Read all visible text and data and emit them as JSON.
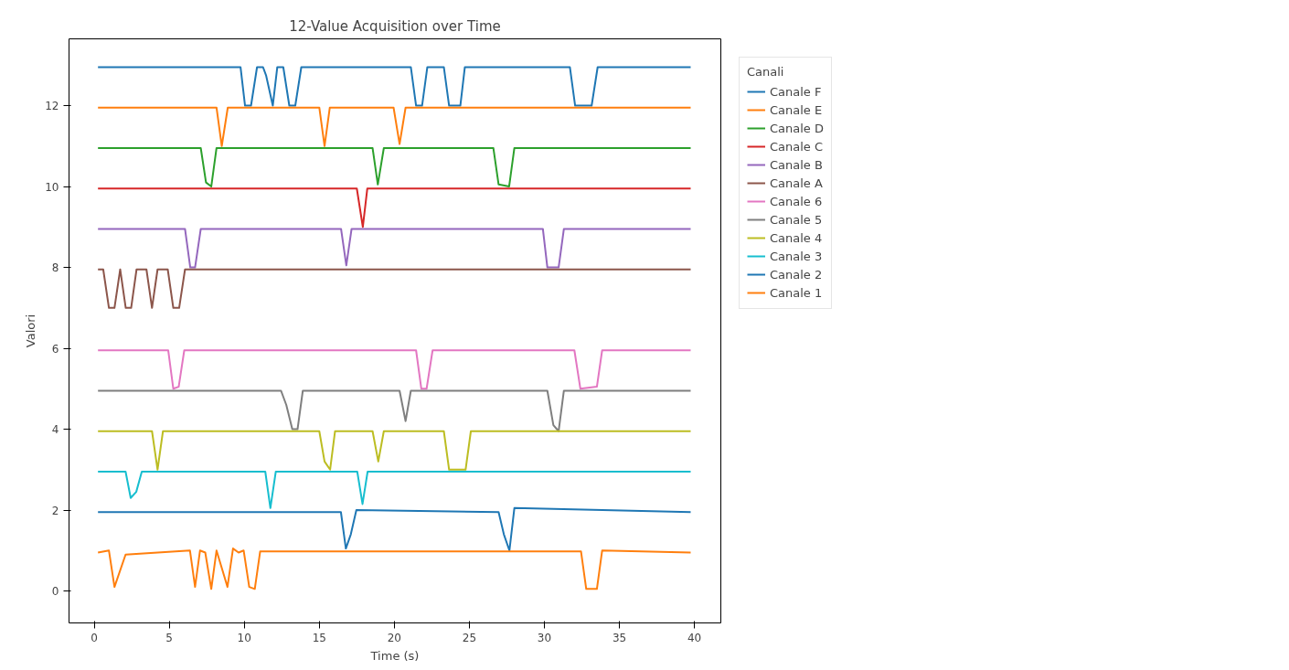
{
  "chart_data": {
    "type": "line",
    "title": "12-Value Acquisition over Time",
    "xlabel": "Time (s)",
    "ylabel": "Valori",
    "legend_title": "Canali",
    "xlim": [
      -1.68,
      41.76
    ],
    "ylim": [
      -0.79,
      13.65
    ],
    "xticks": [
      0,
      5,
      10,
      15,
      20,
      25,
      30,
      35,
      40
    ],
    "yticks": [
      0,
      2,
      4,
      6,
      8,
      10,
      12
    ],
    "grid": false,
    "legend": "top right",
    "marker": "none",
    "line_style": "solid",
    "series": [
      {
        "name": "Canale F",
        "color": "#1f77b4",
        "x": [
          0.25,
          9.75,
          10.05,
          10.45,
          10.85,
          11.25,
          11.45,
          11.9,
          12.2,
          12.6,
          13.0,
          13.4,
          13.8,
          21.1,
          21.45,
          21.85,
          22.2,
          23.3,
          23.65,
          24.4,
          24.7,
          31.7,
          32.05,
          33.15,
          33.55,
          39.75
        ],
        "values": [
          12.95,
          12.95,
          12.0,
          12.0,
          12.95,
          12.95,
          12.75,
          12.0,
          12.95,
          12.95,
          12.0,
          12.0,
          12.95,
          12.95,
          12.0,
          12.0,
          12.95,
          12.95,
          12.0,
          12.0,
          12.95,
          12.95,
          12.0,
          12.0,
          12.95,
          12.95
        ]
      },
      {
        "name": "Canale E",
        "color": "#ff7f0e",
        "x": [
          0.25,
          8.15,
          8.5,
          8.9,
          15.0,
          15.35,
          15.7,
          19.95,
          20.35,
          20.75,
          39.75
        ],
        "values": [
          11.95,
          11.95,
          11.0,
          11.95,
          11.95,
          11.0,
          11.95,
          11.95,
          11.05,
          11.95,
          11.95
        ]
      },
      {
        "name": "Canale D",
        "color": "#2ca02c",
        "x": [
          0.25,
          7.1,
          7.45,
          7.8,
          8.15,
          18.55,
          18.9,
          19.3,
          26.6,
          26.95,
          27.65,
          28.0,
          39.75
        ],
        "values": [
          10.95,
          10.95,
          10.1,
          10.0,
          10.95,
          10.95,
          10.05,
          10.95,
          10.95,
          10.05,
          10.0,
          10.95,
          10.95
        ]
      },
      {
        "name": "Canale C",
        "color": "#d62728",
        "x": [
          0.25,
          17.5,
          17.9,
          18.2,
          39.75
        ],
        "values": [
          9.95,
          9.95,
          9.0,
          9.95,
          9.95
        ]
      },
      {
        "name": "Canale B",
        "color": "#9467bd",
        "x": [
          0.25,
          6.05,
          6.4,
          6.72,
          7.1,
          16.45,
          16.8,
          17.15,
          29.9,
          30.2,
          30.95,
          31.3,
          39.75
        ],
        "values": [
          8.95,
          8.95,
          8.0,
          8.0,
          8.95,
          8.95,
          8.05,
          8.95,
          8.95,
          8.0,
          8.0,
          8.95,
          8.95
        ]
      },
      {
        "name": "Canale A",
        "color": "#8c564b",
        "x": [
          0.25,
          0.6,
          0.98,
          1.35,
          1.73,
          2.1,
          2.46,
          2.82,
          3.48,
          3.85,
          4.22,
          4.9,
          5.27,
          5.66,
          6.05,
          39.75
        ],
        "values": [
          7.95,
          7.95,
          7.0,
          7.0,
          7.95,
          7.0,
          7.0,
          7.95,
          7.95,
          7.0,
          7.95,
          7.95,
          7.0,
          7.0,
          7.95,
          7.95
        ]
      },
      {
        "name": "Canale 6",
        "color": "#e377c2",
        "x": [
          0.25,
          4.93,
          5.27,
          5.63,
          6.0,
          21.45,
          21.8,
          22.15,
          22.55,
          32.0,
          32.4,
          33.5,
          33.85,
          39.75
        ],
        "values": [
          5.95,
          5.95,
          5.0,
          5.05,
          5.95,
          5.95,
          5.0,
          5.0,
          5.95,
          5.95,
          5.0,
          5.05,
          5.95,
          5.95
        ]
      },
      {
        "name": "Canale 5",
        "color": "#7f7f7f",
        "x": [
          0.25,
          12.45,
          12.8,
          13.2,
          13.55,
          13.9,
          20.35,
          20.75,
          21.1,
          30.2,
          30.6,
          30.95,
          31.3,
          39.75
        ],
        "values": [
          4.95,
          4.95,
          4.6,
          4.0,
          4.0,
          4.95,
          4.95,
          4.2,
          4.95,
          4.95,
          4.1,
          3.95,
          4.95,
          4.95
        ]
      },
      {
        "name": "Canale 4",
        "color": "#bcbd22",
        "x": [
          0.25,
          3.85,
          4.22,
          4.58,
          15.0,
          15.35,
          15.72,
          16.05,
          18.55,
          18.93,
          19.3,
          23.3,
          23.65,
          24.75,
          25.1,
          39.75
        ],
        "values": [
          3.95,
          3.95,
          3.0,
          3.95,
          3.95,
          3.2,
          3.0,
          3.95,
          3.95,
          3.2,
          3.95,
          3.95,
          3.0,
          3.0,
          3.95,
          3.95
        ]
      },
      {
        "name": "Canale 3",
        "color": "#17becf",
        "x": [
          0.25,
          2.09,
          2.43,
          2.8,
          3.17,
          11.4,
          11.74,
          12.1,
          17.53,
          17.88,
          18.22,
          39.75
        ],
        "values": [
          2.95,
          2.95,
          2.3,
          2.45,
          2.95,
          2.95,
          2.05,
          2.95,
          2.95,
          2.15,
          2.95,
          2.95
        ]
      },
      {
        "name": "Canale 2",
        "color": "#1f77b4",
        "x": [
          0.25,
          16.44,
          16.77,
          17.1,
          17.47,
          26.95,
          27.3,
          27.67,
          28.0,
          39.75
        ],
        "values": [
          1.95,
          1.95,
          1.05,
          1.4,
          2.0,
          1.95,
          1.4,
          1.0,
          2.05,
          1.95
        ]
      },
      {
        "name": "Canale 1",
        "color": "#ff7f0e",
        "x": [
          0.25,
          0.98,
          1.35,
          2.09,
          6.38,
          6.72,
          7.05,
          7.4,
          7.8,
          8.15,
          8.88,
          9.25,
          9.62,
          9.96,
          10.33,
          10.7,
          11.06,
          32.44,
          32.79,
          33.5,
          33.85,
          39.75
        ],
        "values": [
          0.95,
          1.0,
          0.1,
          0.9,
          1.0,
          0.1,
          1.0,
          0.95,
          0.05,
          1.0,
          0.1,
          1.05,
          0.95,
          1.0,
          0.1,
          0.05,
          0.98,
          0.98,
          0.05,
          0.05,
          1.0,
          0.95
        ]
      }
    ]
  }
}
